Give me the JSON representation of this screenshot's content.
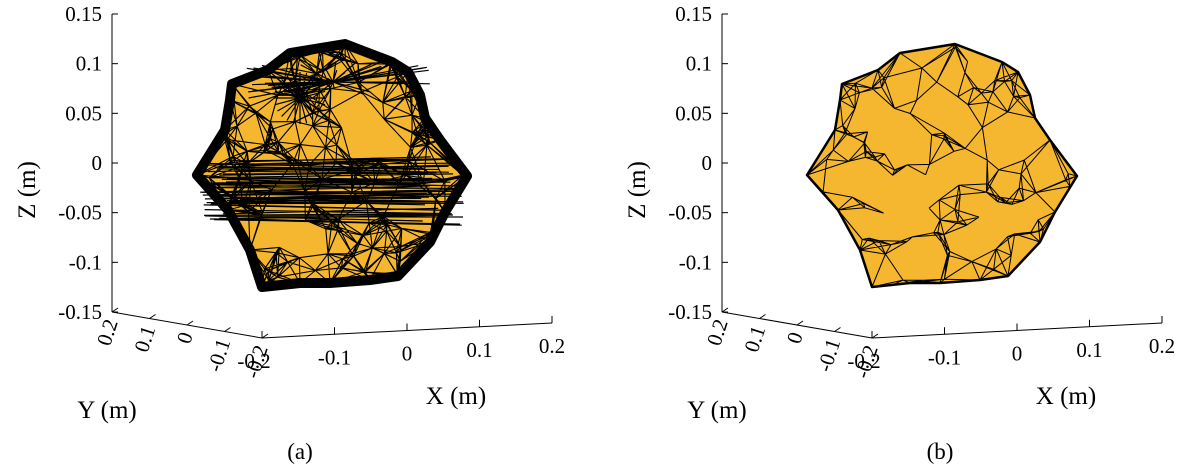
{
  "chart_data": [
    {
      "type": "surface3d",
      "panel_label": "(a)",
      "xlabel": "X (m)",
      "ylabel": "Y (m)",
      "zlabel": "Z (m)",
      "xlim": [
        -0.2,
        0.2
      ],
      "ylim": [
        -0.2,
        0.2
      ],
      "zlim": [
        -0.15,
        0.15
      ],
      "xticks": [
        "-0.2",
        "-0.1",
        "0",
        "0.1",
        "0.2"
      ],
      "yticks": [
        "-0.2",
        "-0.1",
        "0",
        "0.1",
        "0.2"
      ],
      "zticks": [
        "-0.15",
        "-0.1",
        "-0.05",
        "0",
        "0.05",
        "0.1",
        "0.15"
      ],
      "face_color": "#F5B730",
      "edge_color": "#000000",
      "mesh": "dense"
    },
    {
      "type": "surface3d",
      "panel_label": "(b)",
      "xlabel": "X (m)",
      "ylabel": "Y (m)",
      "zlabel": "Z (m)",
      "xlim": [
        -0.2,
        0.2
      ],
      "ylim": [
        -0.2,
        0.2
      ],
      "zlim": [
        -0.15,
        0.15
      ],
      "xticks": [
        "-0.2",
        "-0.1",
        "0",
        "0.1",
        "0.2"
      ],
      "yticks": [
        "-0.2",
        "-0.1",
        "0",
        "0.1",
        "0.2"
      ],
      "zticks": [
        "-0.15",
        "-0.1",
        "-0.05",
        "0",
        "0.05",
        "0.1",
        "0.15"
      ],
      "face_color": "#F5B730",
      "edge_color": "#000000",
      "mesh": "coarse"
    }
  ]
}
